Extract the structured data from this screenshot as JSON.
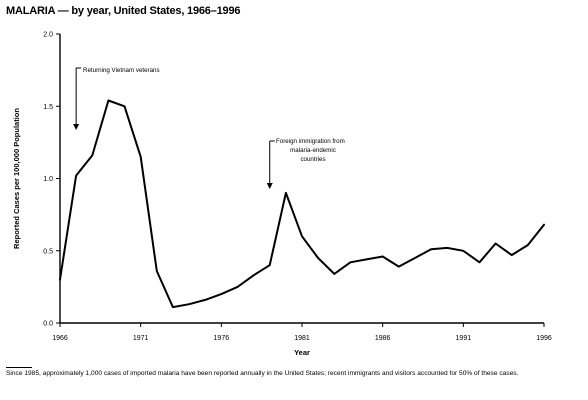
{
  "title": "MALARIA — by year, United States, 1966–1996",
  "footnote": "Since 1985, approximately 1,000 cases of imported malaria have been reported annually in the United States; recent immigrants and visitors accounted for 50% of these cases.",
  "chart_data": {
    "type": "line",
    "title": "MALARIA — by year, United States, 1966–1996",
    "xlabel": "Year",
    "ylabel": "Reported Cases per 100,000 Population",
    "xlim": [
      1966,
      1996
    ],
    "ylim": [
      0,
      2.0
    ],
    "x_ticks": [
      1966,
      1971,
      1976,
      1981,
      1986,
      1991,
      1996
    ],
    "x_tick_labels": [
      "1966",
      "1971",
      "1976",
      "1981",
      "1986",
      "1991",
      "1996"
    ],
    "y_ticks": [
      0,
      0.5,
      1.0,
      1.5,
      2.0
    ],
    "y_tick_labels": [
      "0.0",
      "0.5",
      "1.0",
      "1.5",
      "2.0"
    ],
    "grid": false,
    "series": [
      {
        "x": [
          1966,
          1967,
          1968,
          1969,
          1970,
          1971,
          1972,
          1973,
          1974,
          1975,
          1976,
          1977,
          1978,
          1979,
          1980,
          1981,
          1982,
          1983,
          1984,
          1985,
          1986,
          1987,
          1988,
          1989,
          1990,
          1991,
          1992,
          1993,
          1994,
          1995,
          1996
        ],
        "values": [
          0.3,
          1.02,
          1.16,
          1.54,
          1.5,
          1.15,
          0.36,
          0.11,
          0.13,
          0.16,
          0.2,
          0.25,
          0.33,
          0.4,
          0.9,
          0.6,
          0.45,
          0.34,
          0.42,
          0.44,
          0.46,
          0.39,
          0.45,
          0.51,
          0.52,
          0.5,
          0.42,
          0.55,
          0.47,
          0.54,
          0.68
        ]
      }
    ],
    "annotations": [
      {
        "lines": [
          "Returning Vietnam veterans"
        ],
        "x": 1967
      },
      {
        "lines": [
          "Foreign immigration from",
          "malaria-endemic",
          "countries"
        ],
        "x": 1979
      }
    ]
  }
}
